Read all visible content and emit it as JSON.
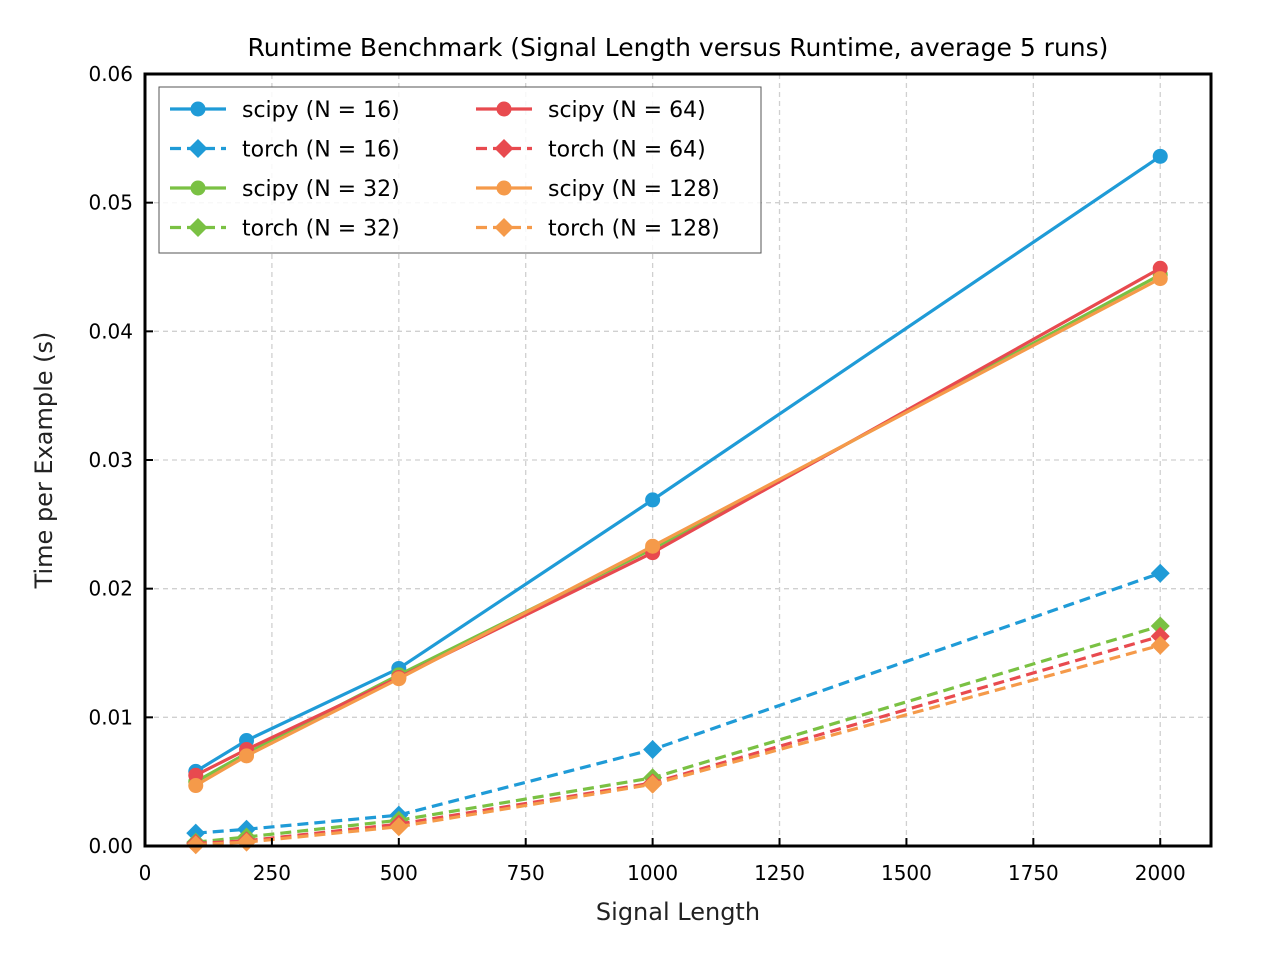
{
  "chart_data": {
    "type": "line",
    "title": "Runtime Benchmark (Signal Length versus Runtime, average 5 runs)",
    "xlabel": "Signal Length",
    "ylabel": "Time per Example (s)",
    "xlim": [
      0,
      2100
    ],
    "ylim": [
      0,
      0.06
    ],
    "xticks": [
      0,
      250,
      500,
      750,
      1000,
      1250,
      1500,
      1750,
      2000
    ],
    "xtick_labels": [
      "0",
      "250",
      "500",
      "750",
      "1000",
      "1250",
      "1500",
      "1750",
      "2000"
    ],
    "yticks": [
      0,
      0.01,
      0.02,
      0.03,
      0.04,
      0.05,
      0.06
    ],
    "ytick_labels": [
      "0.00",
      "0.01",
      "0.02",
      "0.03",
      "0.04",
      "0.05",
      "0.06"
    ],
    "grid": true,
    "legend_position": "top-left",
    "x": [
      100,
      200,
      500,
      1000,
      2000
    ],
    "series": [
      {
        "name": "scipy (N = 16)",
        "color": "#1f9bd7",
        "linestyle": "solid",
        "marker": "circle",
        "values": [
          0.0058,
          0.0082,
          0.0138,
          0.0269,
          0.0536
        ]
      },
      {
        "name": "torch (N = 16)",
        "color": "#1f9bd7",
        "linestyle": "dashed",
        "marker": "diamond",
        "values": [
          0.001,
          0.0013,
          0.0024,
          0.0075,
          0.0212
        ]
      },
      {
        "name": "scipy (N = 32)",
        "color": "#7ac143",
        "linestyle": "solid",
        "marker": "circle",
        "values": [
          0.005,
          0.0072,
          0.0133,
          0.0231,
          0.0444
        ]
      },
      {
        "name": "torch (N = 32)",
        "color": "#7ac143",
        "linestyle": "dashed",
        "marker": "diamond",
        "values": [
          0.0003,
          0.0007,
          0.002,
          0.0053,
          0.0171
        ]
      },
      {
        "name": "scipy (N = 64)",
        "color": "#e84a4f",
        "linestyle": "solid",
        "marker": "circle",
        "values": [
          0.0055,
          0.0075,
          0.0131,
          0.0228,
          0.0449
        ]
      },
      {
        "name": "torch (N = 64)",
        "color": "#e84a4f",
        "linestyle": "dashed",
        "marker": "diamond",
        "values": [
          0.0002,
          0.0004,
          0.0017,
          0.0049,
          0.0163
        ]
      },
      {
        "name": "scipy (N = 128)",
        "color": "#f59a4a",
        "linestyle": "solid",
        "marker": "circle",
        "values": [
          0.0047,
          0.007,
          0.013,
          0.0233,
          0.0441
        ]
      },
      {
        "name": "torch (N = 128)",
        "color": "#f59a4a",
        "linestyle": "dashed",
        "marker": "diamond",
        "values": [
          0.0001,
          0.0003,
          0.0015,
          0.0048,
          0.0156
        ]
      }
    ]
  }
}
